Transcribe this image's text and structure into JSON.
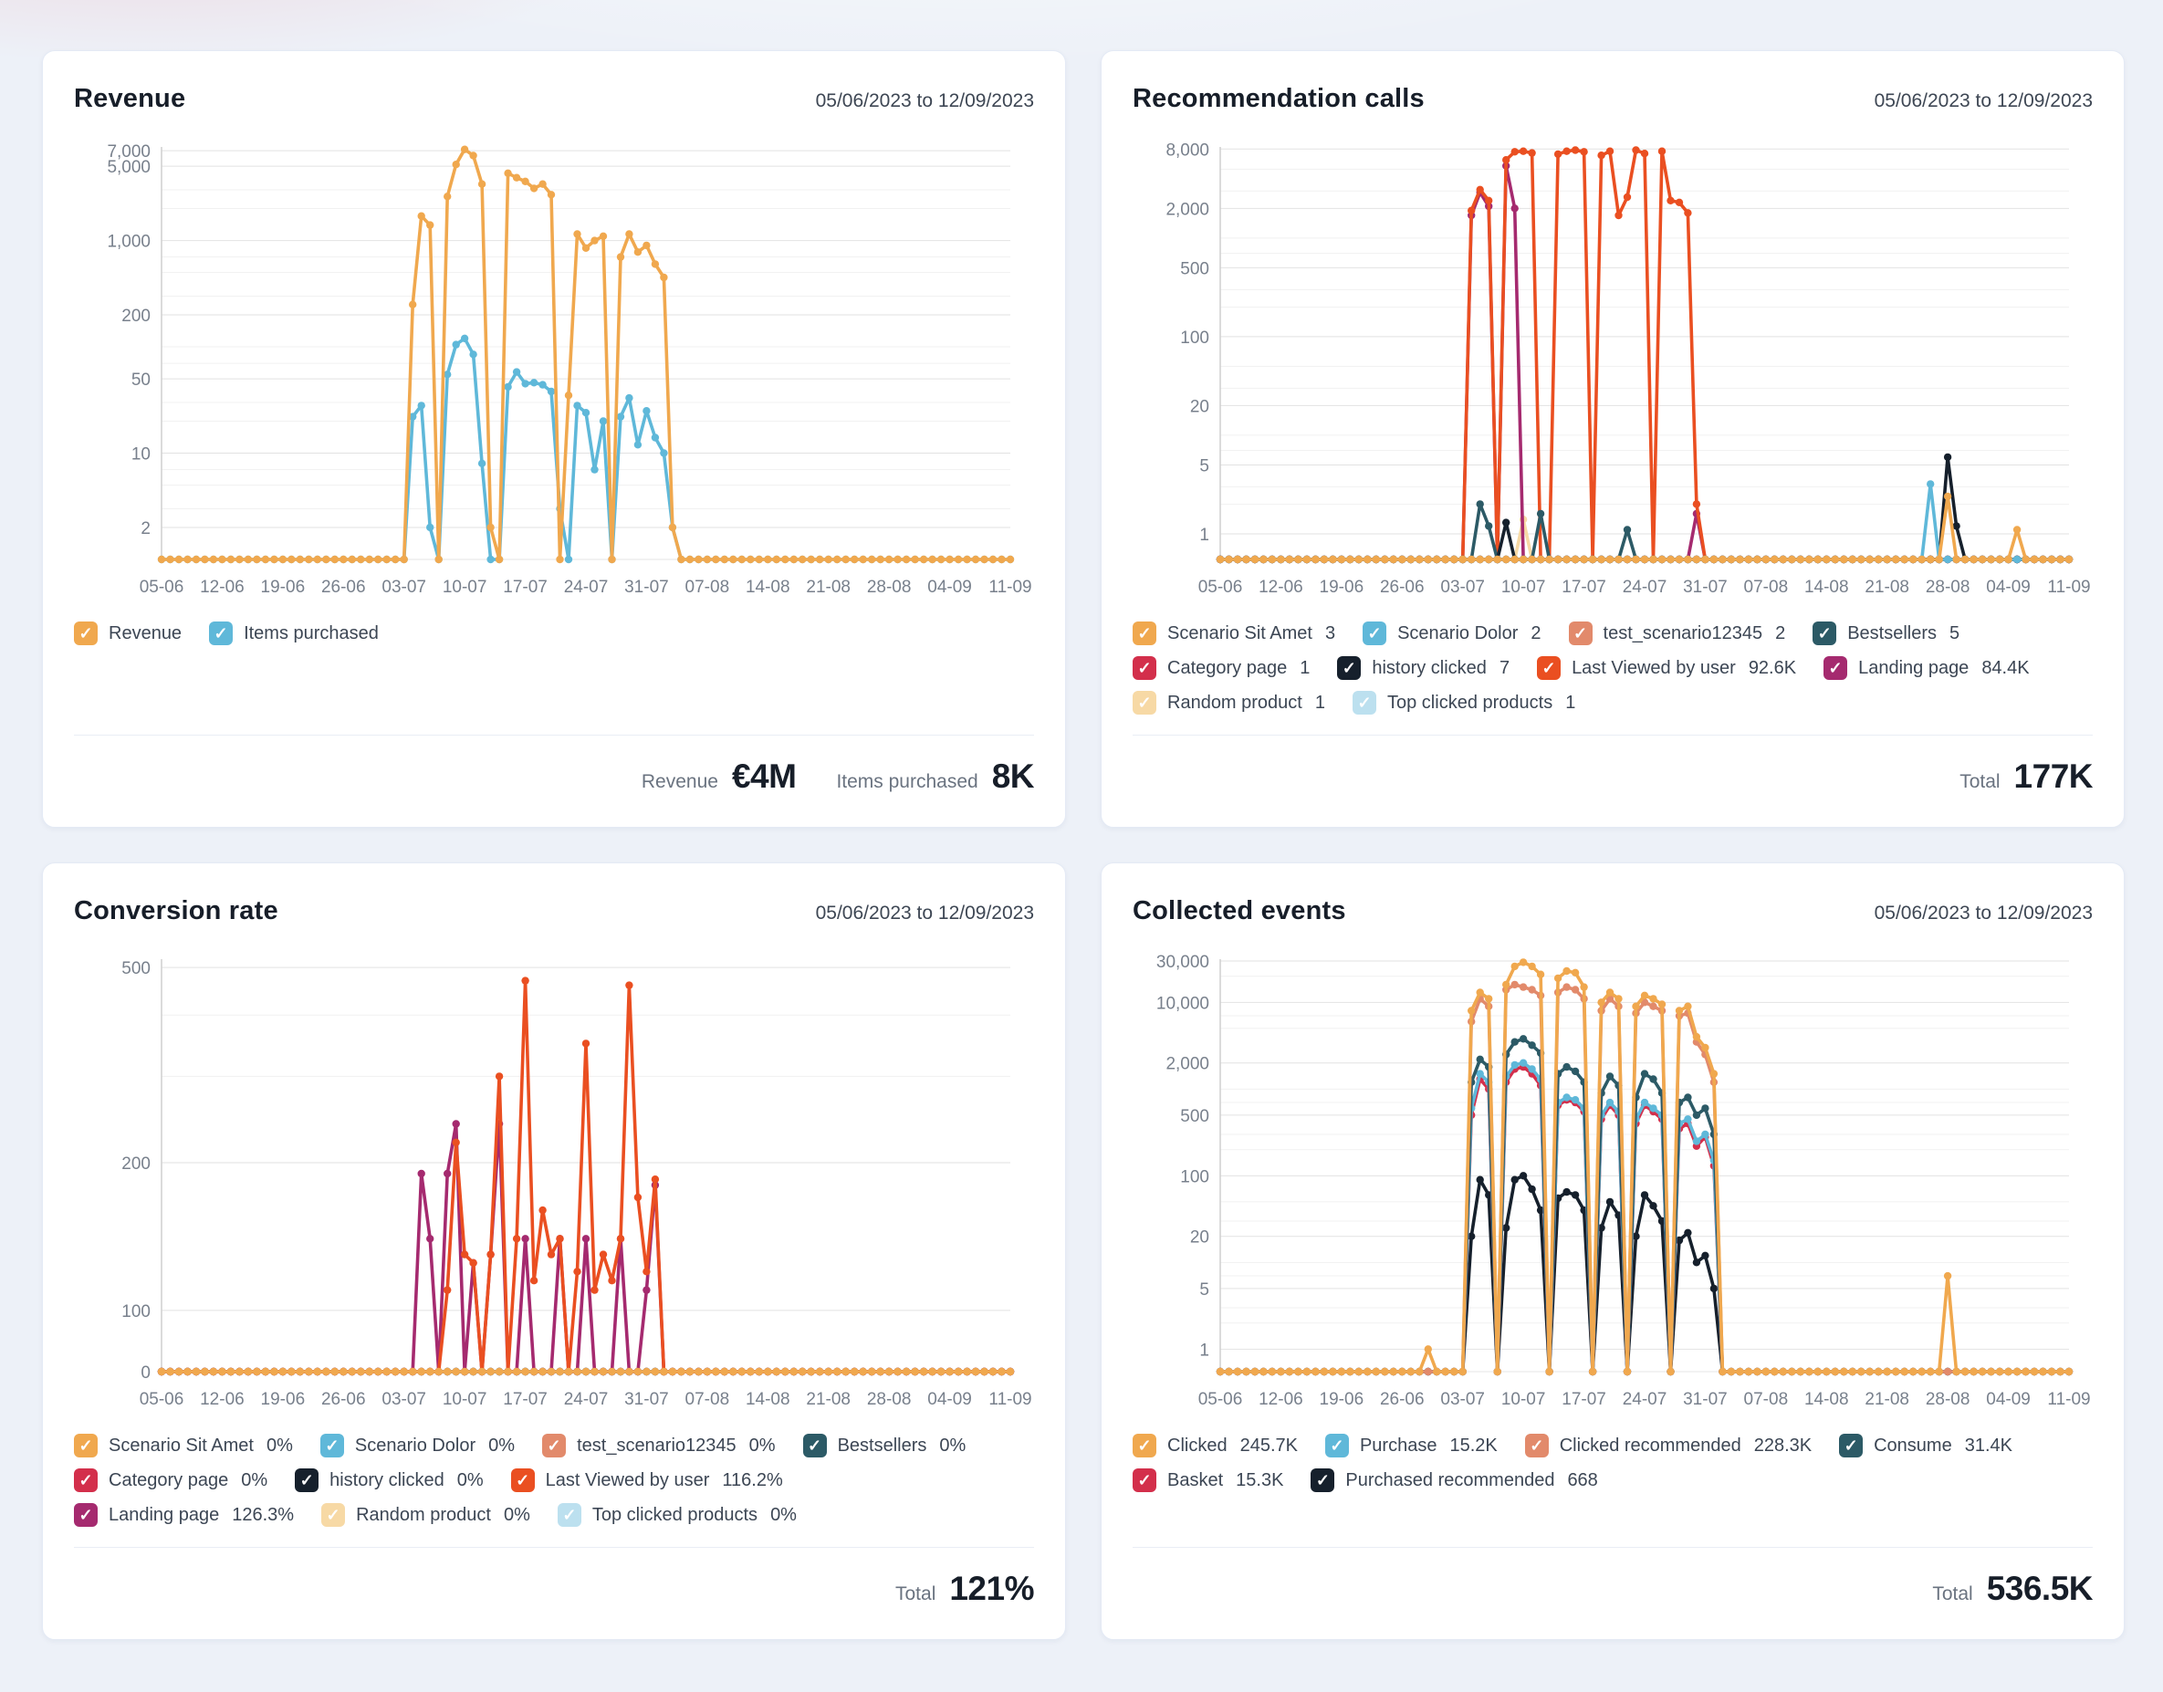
{
  "chart_data": [
    {
      "id": "revenue",
      "type": "line",
      "title": "Revenue",
      "date_range": "05/06/2023 to 12/09/2023",
      "scale": "log",
      "ydomain": [
        1,
        7600
      ],
      "y_ticks": [
        {
          "v": 7000,
          "label": "7,000"
        },
        {
          "v": 5000,
          "label": "5,000"
        },
        {
          "v": 1000,
          "label": "1,000"
        },
        {
          "v": 200,
          "label": "200"
        },
        {
          "v": 50,
          "label": "50"
        },
        {
          "v": 10,
          "label": "10"
        },
        {
          "v": 2,
          "label": "2"
        }
      ],
      "y_minor": [
        3000,
        2000,
        700,
        500,
        300,
        100,
        70,
        30,
        20,
        7,
        5,
        3
      ],
      "n_points": 99,
      "tick_every": 7,
      "x_tick_labels": [
        "05-06",
        "12-06",
        "19-06",
        "26-06",
        "03-07",
        "10-07",
        "17-07",
        "24-07",
        "31-07",
        "07-08",
        "14-08",
        "21-08",
        "28-08",
        "04-09",
        "11-09"
      ],
      "series": [
        {
          "name": "Revenue",
          "value": "",
          "color": "#F0A84E",
          "values": {
            "base": 1,
            "at": {
              "29": 250,
              "30": 1700,
              "31": 1400,
              "33": 2600,
              "34": 5200,
              "35": 7200,
              "36": 6300,
              "37": 3400,
              "38": 2,
              "40": 4300,
              "41": 3900,
              "42": 3600,
              "43": 3100,
              "44": 3400,
              "45": 2700,
              "47": 35,
              "48": 1150,
              "49": 850,
              "50": 1000,
              "51": 1100,
              "53": 700,
              "54": 1150,
              "55": 780,
              "56": 900,
              "57": 600,
              "58": 450,
              "59": 2
            }
          }
        },
        {
          "name": "Items purchased",
          "value": "",
          "color": "#5FB8D9",
          "values": {
            "base": 1,
            "at": {
              "29": 22,
              "30": 28,
              "31": 2,
              "33": 55,
              "34": 105,
              "35": 120,
              "36": 85,
              "37": 8,
              "40": 42,
              "41": 58,
              "42": 45,
              "43": 46,
              "44": 44,
              "45": 38,
              "46": 3,
              "48": 28,
              "49": 24,
              "50": 7,
              "51": 20,
              "53": 22,
              "54": 33,
              "55": 12,
              "56": 25,
              "57": 14,
              "58": 10,
              "59": 2
            }
          }
        }
      ],
      "draw_order": [
        1,
        0
      ],
      "legend_rows": [
        [
          0,
          1
        ]
      ],
      "totals": [
        {
          "label": "Revenue",
          "value": "€4M"
        },
        {
          "label": "Items purchased",
          "value": "8K"
        }
      ]
    },
    {
      "id": "recommendation-calls",
      "type": "line",
      "title": "Recommendation calls",
      "date_range": "05/06/2023 to 12/09/2023",
      "scale": "log",
      "ydomain": [
        0.55,
        8400
      ],
      "y_ticks": [
        {
          "v": 8000,
          "label": "8,000"
        },
        {
          "v": 2000,
          "label": "2,000"
        },
        {
          "v": 500,
          "label": "500"
        },
        {
          "v": 100,
          "label": "100"
        },
        {
          "v": 20,
          "label": "20"
        },
        {
          "v": 5,
          "label": "5"
        },
        {
          "v": 1,
          "label": "1"
        }
      ],
      "y_minor": [
        5000,
        3000,
        1000,
        700,
        300,
        200,
        50,
        30,
        10,
        7,
        3,
        2
      ],
      "n_points": 99,
      "tick_every": 7,
      "x_tick_labels": [
        "05-06",
        "12-06",
        "19-06",
        "26-06",
        "03-07",
        "10-07",
        "17-07",
        "24-07",
        "31-07",
        "07-08",
        "14-08",
        "21-08",
        "28-08",
        "04-09",
        "11-09"
      ],
      "series": [
        {
          "name": "Scenario Sit Amet",
          "value": "3",
          "color": "#F0A84E",
          "values": {
            "base": 0.55,
            "at": {
              "84": 2.4,
              "92": 1.1
            }
          }
        },
        {
          "name": "Scenario Dolor",
          "value": "2",
          "color": "#5FB8D9",
          "values": {
            "base": 0.55,
            "at": {
              "82": 3.2
            }
          }
        },
        {
          "name": "test_scenario12345",
          "value": "2",
          "color": "#E28A6B",
          "values": {
            "base": 0.55,
            "at": {}
          }
        },
        {
          "name": "Bestsellers",
          "value": "5",
          "color": "#2C5A66",
          "values": {
            "base": 0.55,
            "at": {
              "30": 2,
              "31": 1.2,
              "37": 1.6,
              "47": 1.1
            }
          }
        },
        {
          "name": "Category page",
          "value": "1",
          "color": "#D32F4B",
          "values": {
            "base": 0.55,
            "at": {}
          }
        },
        {
          "name": "history clicked",
          "value": "7",
          "color": "#16202C",
          "values": {
            "base": 0.55,
            "at": {
              "33": 1.3,
              "84": 6,
              "85": 1.2
            }
          }
        },
        {
          "name": "Last Viewed by user",
          "value": "92.6K",
          "color": "#EA4F21",
          "values": {
            "base": 0.55,
            "at": {
              "29": 1900,
              "30": 3100,
              "31": 2400,
              "33": 6200,
              "34": 7500,
              "35": 7600,
              "36": 7300,
              "39": 7100,
              "40": 7600,
              "41": 7800,
              "42": 7500,
              "44": 6900,
              "45": 7600,
              "46": 1700,
              "47": 2600,
              "48": 7800,
              "49": 7200,
              "51": 7600,
              "52": 2400,
              "53": 2300,
              "54": 1800,
              "55": 2
            }
          }
        },
        {
          "name": "Landing page",
          "value": "84.4K",
          "color": "#A52A6F",
          "values": {
            "base": 0.55,
            "at": {
              "29": 1700,
              "30": 2900,
              "31": 2100,
              "33": 5400,
              "34": 2000,
              "55": 1.6
            }
          }
        },
        {
          "name": "Random product",
          "value": "1",
          "color": "#F7D9A5",
          "values": {
            "base": 0.55,
            "at": {
              "35": 1.4
            }
          }
        },
        {
          "name": "Top clicked products",
          "value": "1",
          "color": "#BCE0EF",
          "values": {
            "base": 0.55,
            "at": {}
          }
        }
      ],
      "draw_order": [
        9,
        8,
        2,
        4,
        7,
        6,
        3,
        5,
        1,
        0
      ],
      "legend_rows": [
        [
          0,
          1,
          2,
          3
        ],
        [
          4,
          5,
          6,
          7
        ],
        [
          8,
          9
        ]
      ],
      "totals": [
        {
          "label": "Total",
          "value": "177K"
        }
      ]
    },
    {
      "id": "conversion-rate",
      "type": "line",
      "title": "Conversion rate",
      "date_range": "05/06/2023 to 12/09/2023",
      "scale": "log",
      "ydomain": [
        75,
        520
      ],
      "y_ticks": [
        {
          "v": 500,
          "label": "500"
        },
        {
          "v": 200,
          "label": "200"
        },
        {
          "v": 100,
          "label": "100"
        },
        {
          "v": 0,
          "label": "0"
        }
      ],
      "y_minor": [
        400,
        300
      ],
      "n_points": 99,
      "tick_every": 7,
      "x_tick_labels": [
        "05-06",
        "12-06",
        "19-06",
        "26-06",
        "03-07",
        "10-07",
        "17-07",
        "24-07",
        "31-07",
        "07-08",
        "14-08",
        "21-08",
        "28-08",
        "04-09",
        "11-09"
      ],
      "series": [
        {
          "name": "Scenario Sit Amet",
          "value": "0%",
          "color": "#F0A84E",
          "values": {
            "base": 0,
            "at": {}
          }
        },
        {
          "name": "Scenario Dolor",
          "value": "0%",
          "color": "#5FB8D9",
          "values": {
            "base": 0,
            "at": {}
          }
        },
        {
          "name": "test_scenario12345",
          "value": "0%",
          "color": "#E28A6B",
          "values": {
            "base": 0,
            "at": {}
          }
        },
        {
          "name": "Bestsellers",
          "value": "0%",
          "color": "#2C5A66",
          "values": {
            "base": 0,
            "at": {}
          }
        },
        {
          "name": "Category page",
          "value": "0%",
          "color": "#D32F4B",
          "values": {
            "base": 0,
            "at": {}
          }
        },
        {
          "name": "history clicked",
          "value": "0%",
          "color": "#16202C",
          "values": {
            "base": 0,
            "at": {}
          }
        },
        {
          "name": "Last Viewed by user",
          "value": "116.2%",
          "color": "#EA4F21",
          "values": {
            "base": 0,
            "at": {
              "29": 25,
              "30": 45,
              "31": 15,
              "33": 110,
              "34": 220,
              "35": 130,
              "36": 125,
              "37": 10,
              "38": 130,
              "39": 300,
              "40": 60,
              "41": 140,
              "42": 470,
              "43": 115,
              "44": 160,
              "45": 130,
              "46": 140,
              "47": 10,
              "48": 120,
              "49": 350,
              "50": 110,
              "51": 130,
              "52": 115,
              "53": 140,
              "54": 460,
              "55": 170,
              "56": 120,
              "57": 185,
              "58": 20
            }
          }
        },
        {
          "name": "Landing page",
          "value": "126.3%",
          "color": "#A52A6F",
          "values": {
            "base": 0,
            "at": {
              "29": 30,
              "30": 190,
              "31": 140,
              "33": 190,
              "34": 240,
              "35": 20,
              "36": 125,
              "38": 130,
              "39": 240,
              "42": 140,
              "46": 140,
              "49": 140,
              "53": 140,
              "56": 110,
              "57": 180,
              "58": 15
            }
          }
        },
        {
          "name": "Random product",
          "value": "0%",
          "color": "#F7D9A5",
          "values": {
            "base": 0,
            "at": {}
          }
        },
        {
          "name": "Top clicked products",
          "value": "0%",
          "color": "#BCE0EF",
          "values": {
            "base": 0,
            "at": {}
          }
        }
      ],
      "draw_order": [
        9,
        8,
        2,
        3,
        5,
        4,
        1,
        7,
        6,
        0
      ],
      "legend_rows": [
        [
          0,
          1,
          2,
          3
        ],
        [
          4,
          5,
          6
        ],
        [
          7,
          8,
          9
        ]
      ],
      "totals": [
        {
          "label": "Total",
          "value": "121%"
        }
      ]
    },
    {
      "id": "collected-events",
      "type": "line",
      "title": "Collected events",
      "date_range": "05/06/2023 to 12/09/2023",
      "scale": "log",
      "ydomain": [
        0.55,
        31500
      ],
      "y_ticks": [
        {
          "v": 30000,
          "label": "30,000"
        },
        {
          "v": 10000,
          "label": "10,000"
        },
        {
          "v": 2000,
          "label": "2,000"
        },
        {
          "v": 500,
          "label": "500"
        },
        {
          "v": 100,
          "label": "100"
        },
        {
          "v": 20,
          "label": "20"
        },
        {
          "v": 5,
          "label": "5"
        },
        {
          "v": 1,
          "label": "1"
        }
      ],
      "y_minor": [
        20000,
        7000,
        5000,
        1000,
        700,
        300,
        200,
        50,
        30,
        10,
        7,
        3,
        2
      ],
      "n_points": 99,
      "tick_every": 7,
      "x_tick_labels": [
        "05-06",
        "12-06",
        "19-06",
        "26-06",
        "03-07",
        "10-07",
        "17-07",
        "24-07",
        "31-07",
        "07-08",
        "14-08",
        "21-08",
        "28-08",
        "04-09",
        "11-09"
      ],
      "series": [
        {
          "name": "Clicked",
          "value": "245.7K",
          "color": "#F0A84E",
          "values": {
            "base": 0.55,
            "at": {
              "24": 1,
              "29": 8000,
              "30": 13000,
              "31": 11000,
              "33": 16000,
              "34": 26000,
              "35": 29000,
              "36": 26000,
              "37": 21000,
              "39": 19000,
              "40": 23000,
              "41": 22000,
              "42": 15000,
              "44": 10000,
              "45": 13000,
              "46": 11000,
              "48": 9000,
              "49": 12000,
              "50": 11000,
              "51": 9500,
              "53": 8000,
              "54": 9000,
              "55": 4000,
              "56": 3000,
              "57": 1500,
              "84": 7
            }
          }
        },
        {
          "name": "Purchase",
          "value": "15.2K",
          "color": "#5FB8D9",
          "values": {
            "base": 0.55,
            "at": {
              "29": 600,
              "30": 1500,
              "31": 1200,
              "33": 1400,
              "34": 1900,
              "35": 2000,
              "36": 1700,
              "37": 1300,
              "39": 700,
              "40": 800,
              "41": 750,
              "42": 600,
              "44": 500,
              "45": 700,
              "46": 550,
              "48": 450,
              "49": 700,
              "50": 600,
              "51": 500,
              "53": 400,
              "54": 450,
              "55": 250,
              "56": 300,
              "57": 150
            }
          }
        },
        {
          "name": "Clicked recommended",
          "value": "228.3K",
          "color": "#E28A6B",
          "values": {
            "base": 0.55,
            "at": {
              "29": 6000,
              "30": 11000,
              "31": 9000,
              "33": 14000,
              "34": 16000,
              "35": 15000,
              "36": 14000,
              "37": 12000,
              "39": 13000,
              "40": 15000,
              "41": 14000,
              "42": 11000,
              "44": 8000,
              "45": 11000,
              "46": 9000,
              "48": 7500,
              "49": 10000,
              "50": 9000,
              "51": 8000,
              "53": 7000,
              "54": 7500,
              "55": 3500,
              "56": 2500,
              "57": 1200
            }
          }
        },
        {
          "name": "Consume",
          "value": "31.4K",
          "color": "#2C5A66",
          "values": {
            "base": 0.55,
            "at": {
              "29": 1200,
              "30": 2200,
              "31": 1800,
              "33": 2500,
              "34": 3500,
              "35": 3800,
              "36": 3200,
              "37": 2600,
              "39": 1500,
              "40": 1800,
              "41": 1600,
              "42": 1200,
              "44": 900,
              "45": 1400,
              "46": 1100,
              "48": 800,
              "49": 1500,
              "50": 1300,
              "51": 900,
              "53": 700,
              "54": 800,
              "55": 500,
              "56": 600,
              "57": 300
            }
          }
        },
        {
          "name": "Basket",
          "value": "15.3K",
          "color": "#D32F4B",
          "values": {
            "base": 0.55,
            "at": {
              "29": 500,
              "30": 1300,
              "31": 1000,
              "33": 1200,
              "34": 1700,
              "35": 1800,
              "36": 1500,
              "37": 1100,
              "39": 650,
              "40": 750,
              "41": 700,
              "42": 550,
              "44": 450,
              "45": 650,
              "46": 500,
              "48": 400,
              "49": 650,
              "50": 550,
              "51": 450,
              "53": 350,
              "54": 400,
              "55": 220,
              "56": 280,
              "57": 130
            }
          }
        },
        {
          "name": "Purchased recommended",
          "value": "668",
          "color": "#16202C",
          "values": {
            "base": 0.55,
            "at": {
              "29": 20,
              "30": 90,
              "31": 60,
              "33": 25,
              "34": 90,
              "35": 100,
              "36": 70,
              "37": 40,
              "39": 55,
              "40": 65,
              "41": 60,
              "42": 40,
              "44": 25,
              "45": 50,
              "46": 35,
              "48": 20,
              "49": 60,
              "50": 45,
              "51": 30,
              "53": 18,
              "54": 22,
              "55": 10,
              "56": 12,
              "57": 5
            }
          }
        }
      ],
      "draw_order": [
        5,
        4,
        1,
        3,
        2,
        0
      ],
      "legend_rows": [
        [
          0,
          1,
          2,
          3
        ],
        [
          4,
          5
        ]
      ],
      "totals": [
        {
          "label": "Total",
          "value": "536.5K"
        }
      ]
    }
  ],
  "style_colors": {
    "page_background": "#edf1f8",
    "card_background": "#ffffff",
    "grid_major": "#e2e2e2",
    "grid_minor": "#f1f1f1",
    "axis_text": "#78808c",
    "legend_text": "#3c4654",
    "title_text": "#171e29"
  }
}
